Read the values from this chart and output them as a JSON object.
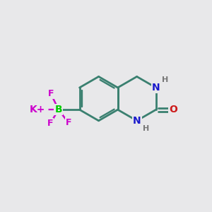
{
  "bg_color": "#e8e8ea",
  "bond_color": "#3a8070",
  "bond_width": 2.0,
  "atom_colors": {
    "N": "#1a1acc",
    "O": "#cc1a1a",
    "B": "#00cc00",
    "K": "#cc00cc",
    "F": "#cc00cc",
    "H": "#777777"
  },
  "font_size_atom": 10,
  "font_size_small": 8,
  "s": 1.05
}
